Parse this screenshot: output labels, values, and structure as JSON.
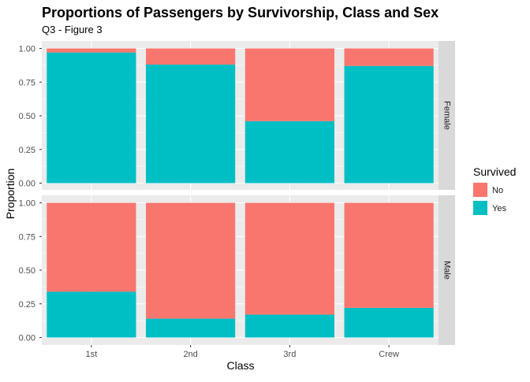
{
  "chart_data": {
    "type": "bar",
    "stacked": true,
    "position": "fill",
    "title": "Proportions of Passengers by Survivorship, Class and Sex",
    "subtitle": "Q3 - Figure 3",
    "xlabel": "Class",
    "ylabel": "Proportion",
    "categories": [
      "1st",
      "2nd",
      "3rd",
      "Crew"
    ],
    "ylim": [
      0,
      1
    ],
    "yticks": [
      "0.00",
      "0.25",
      "0.50",
      "0.75",
      "1.00"
    ],
    "yticks_values": [
      0,
      0.25,
      0.5,
      0.75,
      1.0
    ],
    "grid": true,
    "legend": {
      "title": "Survived",
      "placement": "right",
      "entries": [
        {
          "label": "No",
          "color": "#F8766D"
        },
        {
          "label": "Yes",
          "color": "#00BFC4"
        }
      ]
    },
    "facets": [
      {
        "label": "Female",
        "series": [
          {
            "name": "Yes",
            "values": [
              0.97,
              0.88,
              0.46,
              0.87
            ]
          },
          {
            "name": "No",
            "values": [
              0.03,
              0.12,
              0.54,
              0.13
            ]
          }
        ]
      },
      {
        "label": "Male",
        "series": [
          {
            "name": "Yes",
            "values": [
              0.34,
              0.14,
              0.17,
              0.22
            ]
          },
          {
            "name": "No",
            "values": [
              0.66,
              0.86,
              0.83,
              0.78
            ]
          }
        ]
      }
    ],
    "colors": {
      "panel_bg": "#EBEBEB",
      "grid_major": "#FFFFFF",
      "strip_bg": "#D9D9D9",
      "no": "#F8766D",
      "yes": "#00BFC4"
    }
  }
}
